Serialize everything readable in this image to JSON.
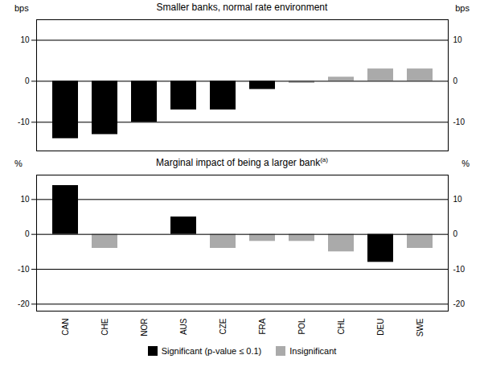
{
  "chart_data": [
    {
      "type": "bar",
      "title": "Smaller banks, normal rate environment",
      "ylabel": "bps",
      "y2label": "bps",
      "categories": [
        "CAN",
        "CHE",
        "NOR",
        "AUS",
        "CZE",
        "FRA",
        "POL",
        "CHL",
        "DEU",
        "SWE"
      ],
      "series": [
        {
          "name": "Significant (p-value ≤ 0.1)",
          "color": "#000000",
          "values": [
            -14,
            -13,
            -10,
            -7,
            -7,
            -2,
            null,
            null,
            null,
            null
          ]
        },
        {
          "name": "Insignificant",
          "color": "#aaaaaa",
          "values": [
            null,
            null,
            null,
            null,
            null,
            null,
            -0.5,
            1,
            3,
            3
          ]
        }
      ],
      "ylim": [
        -17,
        15
      ],
      "yticks": [
        -10,
        0,
        10
      ],
      "y2lim": [
        -17,
        15
      ],
      "y2ticks": [
        -10,
        0,
        10
      ],
      "grid": true,
      "tick_labels": "y"
    },
    {
      "type": "bar",
      "title": "Marginal impact of being a larger bank",
      "annotations": [
        "(a)"
      ],
      "ylabel": "%",
      "y2label": "%",
      "categories": [
        "CAN",
        "CHE",
        "NOR",
        "AUS",
        "CZE",
        "FRA",
        "POL",
        "CHL",
        "DEU",
        "SWE"
      ],
      "series": [
        {
          "name": "Significant (p-value ≤ 0.1)",
          "color": "#000000",
          "values": [
            14,
            null,
            null,
            5,
            null,
            null,
            null,
            null,
            -8,
            null
          ]
        },
        {
          "name": "Insignificant",
          "color": "#aaaaaa",
          "values": [
            null,
            -4,
            0,
            null,
            -4,
            -2,
            -2,
            -5,
            null,
            -4
          ]
        }
      ],
      "ylim": [
        -22,
        17
      ],
      "yticks": [
        -20,
        -10,
        0,
        10
      ],
      "y2lim": [
        -22,
        17
      ],
      "y2ticks": [
        -20,
        -10,
        0,
        10
      ],
      "grid": true,
      "legend": "bottom"
    }
  ]
}
